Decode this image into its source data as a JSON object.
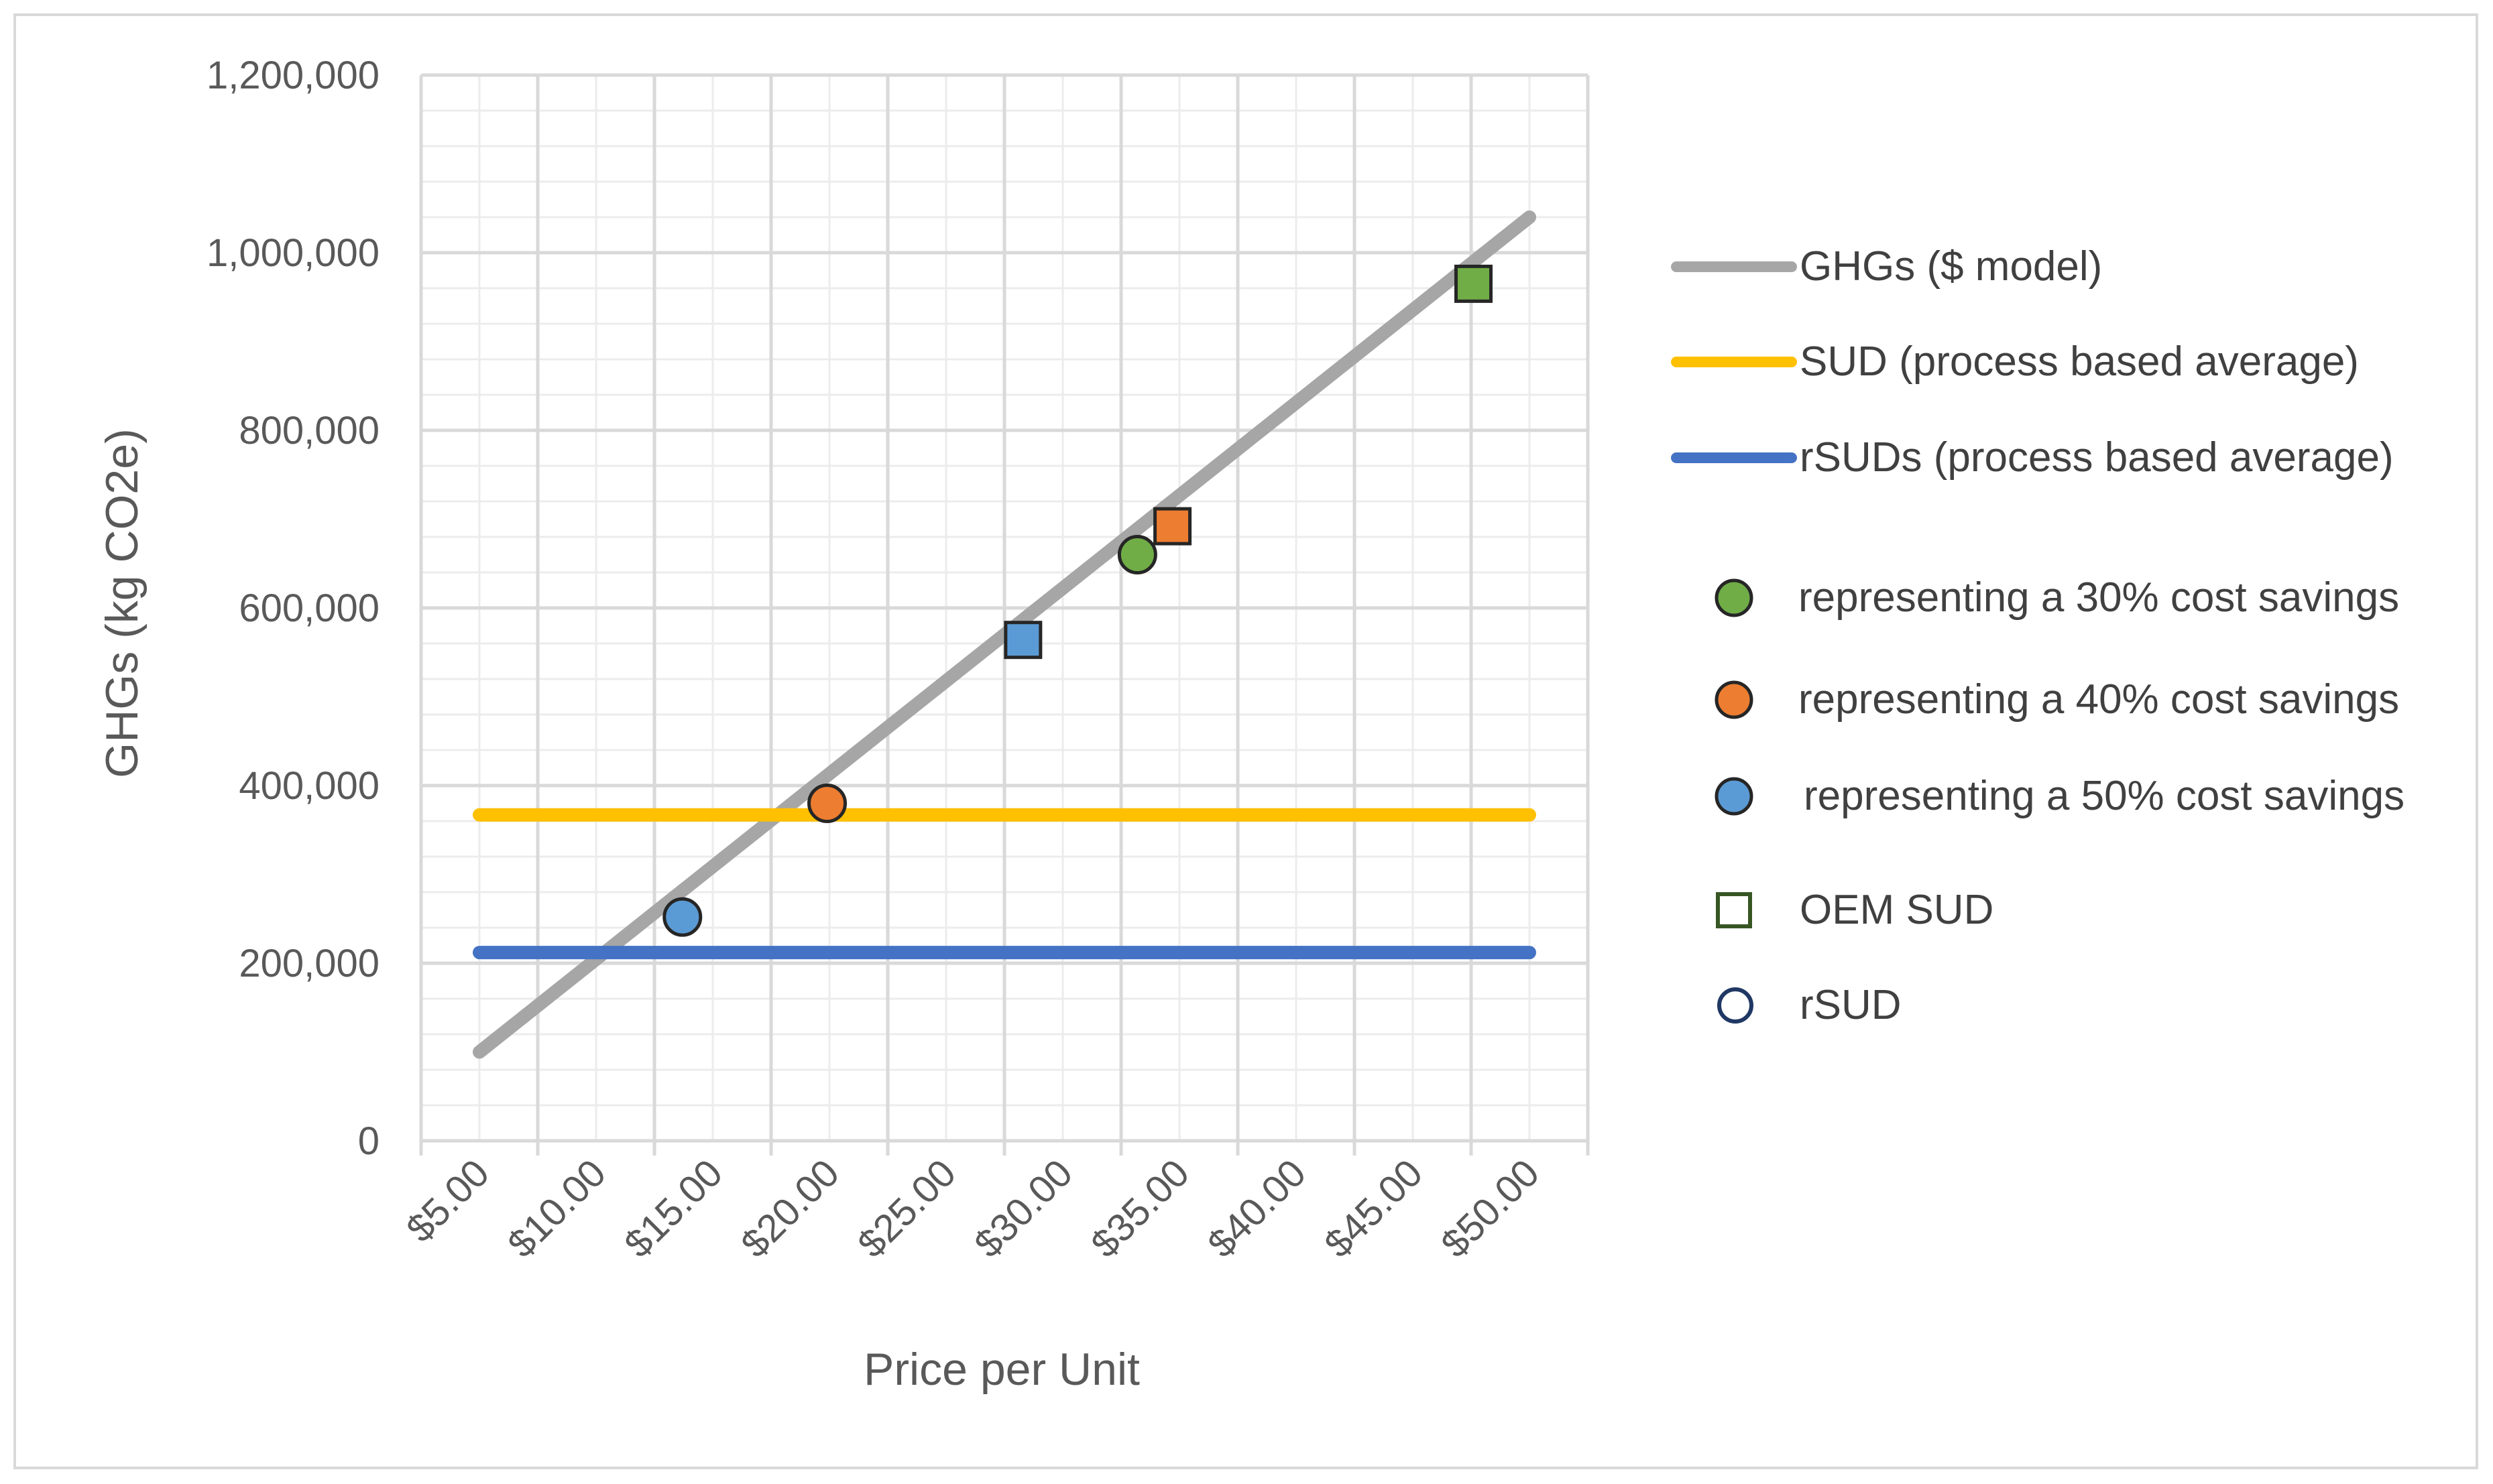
{
  "chart_data": {
    "type": "line",
    "title": "",
    "xlabel": "Price per Unit",
    "ylabel": "GHGs (kg CO2e)",
    "x_axis": {
      "categories": [
        "$5.00",
        "$10.00",
        "$15.00",
        "$20.00",
        "$25.00",
        "$30.00",
        "$35.00",
        "$40.00",
        "$45.00",
        "$50.00"
      ],
      "range": [
        2.5,
        52.5
      ]
    },
    "y_axis": {
      "range": [
        0,
        1200000
      ],
      "ticks": [
        0,
        200000,
        400000,
        600000,
        800000,
        1000000,
        1200000
      ],
      "tick_labels": [
        "0",
        "200,000",
        "400,000",
        "600,000",
        "800,000",
        "1,000,000",
        "1,200,000"
      ],
      "minor_step": 40000
    },
    "grid": true,
    "series": [
      {
        "name": "GHGs ($ model)",
        "kind": "line",
        "color": "#a6a6a6",
        "points": [
          [
            5,
            100000
          ],
          [
            50,
            1040000
          ]
        ]
      },
      {
        "name": "SUD (process based average)",
        "kind": "line",
        "color": "#ffc000",
        "points": [
          [
            5,
            367000
          ],
          [
            50,
            367000
          ]
        ]
      },
      {
        "name": "rSUDs (process based average)",
        "kind": "line",
        "color": "#4472c4",
        "points": [
          [
            5,
            212000
          ],
          [
            50,
            212000
          ]
        ]
      },
      {
        "name": "representing a 30% cost savings",
        "kind": "marker",
        "color": "#70ad47"
      },
      {
        "name": "representing a 40% cost savings",
        "kind": "marker",
        "color": "#ed7d31"
      },
      {
        "name": "representing a 50% cost savings",
        "kind": "marker",
        "color": "#5b9bd5"
      },
      {
        "name": "OEM SUD",
        "kind": "marker-shape",
        "shape": "square",
        "color": "#375623"
      },
      {
        "name": "rSUD",
        "kind": "marker-shape",
        "shape": "circle",
        "color": "#203864"
      }
    ],
    "points": [
      {
        "x": 47.6,
        "y": 965000,
        "shape": "square",
        "color": "#70ad47"
      },
      {
        "x": 33.2,
        "y": 660000,
        "shape": "circle",
        "color": "#70ad47"
      },
      {
        "x": 34.7,
        "y": 692000,
        "shape": "square",
        "color": "#ed7d31"
      },
      {
        "x": 19.9,
        "y": 380000,
        "shape": "circle",
        "color": "#ed7d31"
      },
      {
        "x": 28.3,
        "y": 564000,
        "shape": "square",
        "color": "#5b9bd5"
      },
      {
        "x": 13.7,
        "y": 252000,
        "shape": "circle",
        "color": "#5b9bd5"
      }
    ],
    "legend_placement": "right"
  }
}
